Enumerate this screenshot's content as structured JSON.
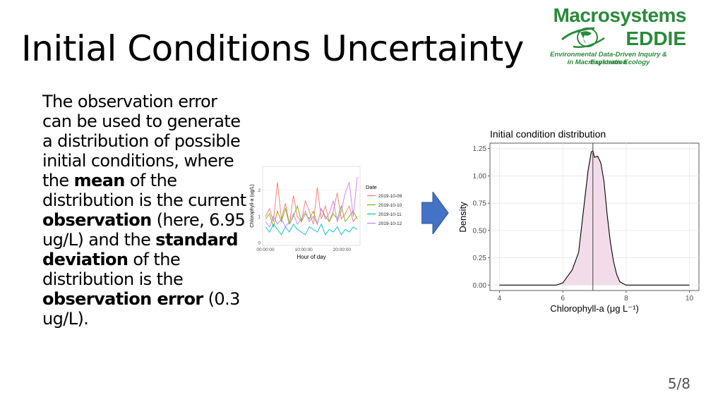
{
  "slide": {
    "title": "Initial Conditions Uncertainty",
    "page_number": "5/8"
  },
  "logo": {
    "line1": "Macrosystems",
    "line2": "EDDIE",
    "sub1": "Environmental Data-Driven Inquiry & Exploration",
    "sub2": "in Macrosystems Ecology"
  },
  "body": {
    "t1": "The observation error can be used to generate a distribution of possible initial conditions, where the ",
    "b1": "mean",
    "t2": " of the distribution is the current ",
    "b2": "observation",
    "t3": " (here, 6.95 ug/L) and the ",
    "b3": "standard deviation",
    "t4": " of the distribution is the ",
    "b4": "observation error",
    "t5": " (0.3 ug/L)."
  },
  "colors": {
    "logo_green": "#2a8a3a",
    "arrow_fill": "#4472c4",
    "density_fill": "#f3dcea",
    "series": [
      "#f8766d",
      "#7cae00",
      "#00bfc4",
      "#c77cff"
    ]
  },
  "chart_data": [
    {
      "type": "line",
      "xlabel": "Hour of day",
      "ylabel": "Chlorophyll-a (ug/L)",
      "x_ticks": [
        "00:00:00",
        "10:00:00",
        "20:00:00"
      ],
      "y_ticks": [
        "0",
        "1",
        "2"
      ],
      "ylim": [
        0,
        2.8
      ],
      "xlim": [
        0,
        24
      ],
      "grid": true,
      "legend_title": "Date",
      "legend_position": "right",
      "series": [
        {
          "name": "2019-10-09",
          "values": [
            1.0,
            1.3,
            0.8,
            2.3,
            0.9,
            1.5,
            0.7,
            1.8,
            1.0,
            0.8,
            1.6,
            1.2,
            0.7,
            2.1,
            0.9,
            1.4,
            0.8,
            1.2,
            1.9,
            0.9,
            1.1,
            1.4,
            0.8,
            1.0
          ]
        },
        {
          "name": "2019-10-10",
          "values": [
            0.9,
            1.1,
            0.6,
            1.2,
            0.8,
            1.3,
            0.7,
            1.0,
            1.4,
            0.8,
            1.1,
            0.9,
            1.2,
            0.7,
            1.3,
            1.0,
            0.8,
            1.1,
            0.9,
            1.4,
            0.8,
            1.0,
            1.2,
            0.9
          ]
        },
        {
          "name": "2019-10-11",
          "values": [
            0.6,
            0.4,
            0.7,
            0.5,
            0.3,
            0.6,
            0.4,
            0.7,
            0.5,
            0.4,
            0.3,
            0.6,
            0.5,
            0.4,
            0.7,
            0.3,
            0.5,
            0.4,
            0.6,
            0.3,
            0.5,
            0.4,
            0.6,
            0.5
          ]
        },
        {
          "name": "2019-10-12",
          "values": [
            0.8,
            0.6,
            1.0,
            0.7,
            0.9,
            0.6,
            0.8,
            1.1,
            0.7,
            0.9,
            1.2,
            0.8,
            1.0,
            0.7,
            1.3,
            0.9,
            1.1,
            1.6,
            0.8,
            1.2,
            1.9,
            2.3,
            1.0,
            2.5
          ]
        }
      ]
    },
    {
      "type": "area",
      "title": "Initial condition distribution",
      "xlabel": "Chlorophyll-a (μg L⁻¹)",
      "ylabel": "Density",
      "xlim": [
        3.7,
        10.3
      ],
      "ylim": [
        -0.05,
        1.3
      ],
      "x_ticks": [
        4,
        6,
        8,
        10
      ],
      "y_ticks": [
        "0.00",
        "0.25",
        "0.50",
        "0.75",
        "1.00",
        "1.25"
      ],
      "grid": true,
      "mean_line": 6.95,
      "x": [
        4.0,
        5.8,
        6.0,
        6.2,
        6.3,
        6.4,
        6.5,
        6.6,
        6.7,
        6.8,
        6.9,
        6.95,
        7.0,
        7.1,
        7.2,
        7.3,
        7.4,
        7.5,
        7.6,
        7.7,
        7.8,
        8.0,
        10.0
      ],
      "values": [
        0.0,
        0.0,
        0.02,
        0.1,
        0.14,
        0.22,
        0.3,
        0.55,
        0.8,
        1.05,
        1.22,
        1.23,
        1.17,
        1.18,
        1.12,
        0.95,
        0.65,
        0.4,
        0.22,
        0.1,
        0.03,
        0.0,
        0.0
      ]
    }
  ]
}
